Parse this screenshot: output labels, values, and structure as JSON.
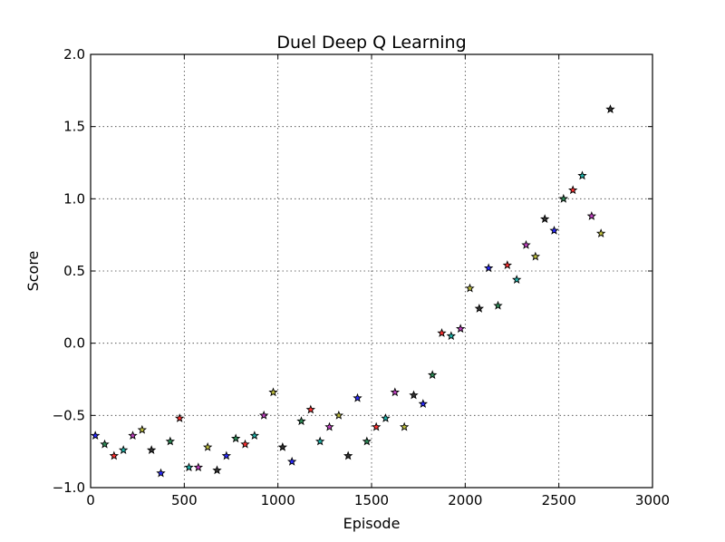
{
  "chart_data": {
    "type": "scatter",
    "title": "Duel Deep Q Learning",
    "xlabel": "Episode",
    "ylabel": "Score",
    "xlim": [
      0,
      3000
    ],
    "ylim": [
      -1.0,
      2.0
    ],
    "xticks": [
      0,
      500,
      1000,
      1500,
      2000,
      2500,
      3000
    ],
    "xtick_labels": [
      "0",
      "500",
      "1000",
      "1500",
      "2000",
      "2500",
      "3000"
    ],
    "yticks": [
      -1.0,
      -0.5,
      0.0,
      0.5,
      1.0,
      1.5,
      2.0
    ],
    "ytick_labels": [
      "−1.0",
      "−0.5",
      "0.0",
      "0.5",
      "1.0",
      "1.5",
      "2.0"
    ],
    "grid": true,
    "marker": "star",
    "series": [
      {
        "points": [
          {
            "x": 25,
            "y": -0.64,
            "color": "#2a2aff"
          },
          {
            "x": 75,
            "y": -0.7,
            "color": "#2e8b57"
          },
          {
            "x": 125,
            "y": -0.78,
            "color": "#ff3333"
          },
          {
            "x": 175,
            "y": -0.74,
            "color": "#20b2aa"
          },
          {
            "x": 225,
            "y": -0.64,
            "color": "#c040c0"
          },
          {
            "x": 275,
            "y": -0.6,
            "color": "#c0c040"
          },
          {
            "x": 325,
            "y": -0.74,
            "color": "#333333"
          },
          {
            "x": 375,
            "y": -0.9,
            "color": "#2a2aff"
          },
          {
            "x": 425,
            "y": -0.68,
            "color": "#2e8b57"
          },
          {
            "x": 475,
            "y": -0.52,
            "color": "#ff3333"
          },
          {
            "x": 525,
            "y": -0.86,
            "color": "#20b2aa"
          },
          {
            "x": 575,
            "y": -0.86,
            "color": "#c040c0"
          },
          {
            "x": 625,
            "y": -0.72,
            "color": "#c0c040"
          },
          {
            "x": 675,
            "y": -0.88,
            "color": "#333333"
          },
          {
            "x": 725,
            "y": -0.78,
            "color": "#2a2aff"
          },
          {
            "x": 775,
            "y": -0.66,
            "color": "#2e8b57"
          },
          {
            "x": 825,
            "y": -0.7,
            "color": "#ff3333"
          },
          {
            "x": 875,
            "y": -0.64,
            "color": "#20b2aa"
          },
          {
            "x": 925,
            "y": -0.5,
            "color": "#c040c0"
          },
          {
            "x": 975,
            "y": -0.34,
            "color": "#c0c040"
          },
          {
            "x": 1025,
            "y": -0.72,
            "color": "#333333"
          },
          {
            "x": 1075,
            "y": -0.82,
            "color": "#2a2aff"
          },
          {
            "x": 1125,
            "y": -0.54,
            "color": "#2e8b57"
          },
          {
            "x": 1175,
            "y": -0.46,
            "color": "#ff3333"
          },
          {
            "x": 1225,
            "y": -0.68,
            "color": "#20b2aa"
          },
          {
            "x": 1275,
            "y": -0.58,
            "color": "#c040c0"
          },
          {
            "x": 1325,
            "y": -0.5,
            "color": "#c0c040"
          },
          {
            "x": 1375,
            "y": -0.78,
            "color": "#333333"
          },
          {
            "x": 1425,
            "y": -0.38,
            "color": "#2a2aff"
          },
          {
            "x": 1475,
            "y": -0.68,
            "color": "#2e8b57"
          },
          {
            "x": 1525,
            "y": -0.58,
            "color": "#ff3333"
          },
          {
            "x": 1575,
            "y": -0.52,
            "color": "#20b2aa"
          },
          {
            "x": 1625,
            "y": -0.34,
            "color": "#c040c0"
          },
          {
            "x": 1675,
            "y": -0.58,
            "color": "#c0c040"
          },
          {
            "x": 1725,
            "y": -0.36,
            "color": "#333333"
          },
          {
            "x": 1775,
            "y": -0.42,
            "color": "#2a2aff"
          },
          {
            "x": 1825,
            "y": -0.22,
            "color": "#2e8b57"
          },
          {
            "x": 1875,
            "y": 0.07,
            "color": "#ff3333"
          },
          {
            "x": 1925,
            "y": 0.05,
            "color": "#20b2aa"
          },
          {
            "x": 1975,
            "y": 0.1,
            "color": "#c040c0"
          },
          {
            "x": 2025,
            "y": 0.38,
            "color": "#c0c040"
          },
          {
            "x": 2075,
            "y": 0.24,
            "color": "#333333"
          },
          {
            "x": 2125,
            "y": 0.52,
            "color": "#2a2aff"
          },
          {
            "x": 2175,
            "y": 0.26,
            "color": "#2e8b57"
          },
          {
            "x": 2225,
            "y": 0.54,
            "color": "#ff3333"
          },
          {
            "x": 2275,
            "y": 0.44,
            "color": "#20b2aa"
          },
          {
            "x": 2325,
            "y": 0.68,
            "color": "#c040c0"
          },
          {
            "x": 2375,
            "y": 0.6,
            "color": "#c0c040"
          },
          {
            "x": 2425,
            "y": 0.86,
            "color": "#333333"
          },
          {
            "x": 2475,
            "y": 0.78,
            "color": "#2a2aff"
          },
          {
            "x": 2525,
            "y": 1.0,
            "color": "#2e8b57"
          },
          {
            "x": 2575,
            "y": 1.06,
            "color": "#ff3333"
          },
          {
            "x": 2625,
            "y": 1.16,
            "color": "#20b2aa"
          },
          {
            "x": 2675,
            "y": 0.88,
            "color": "#c040c0"
          },
          {
            "x": 2725,
            "y": 0.76,
            "color": "#c0c040"
          },
          {
            "x": 2775,
            "y": 1.62,
            "color": "#333333"
          }
        ]
      }
    ]
  }
}
